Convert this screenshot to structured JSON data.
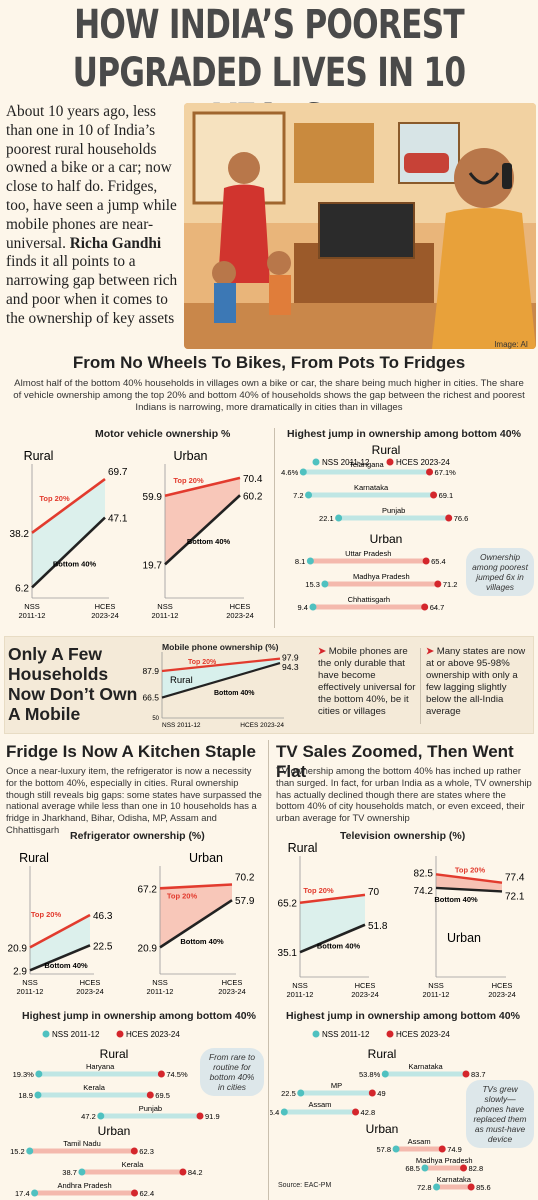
{
  "headline": {
    "line1": "HOW INDIA’S POOREST",
    "line2": "UPGRADED LIVES IN 10 YEARS"
  },
  "intro": {
    "text_before": "About 10 years ago, less than one in 10 of India’s poorest rural households owned a bike or a car; now close to half do. Fridges, too, have seen a jump while mobile phones are near-universal. ",
    "byline": "Richa Gandhi",
    "text_after": " finds it all points to a narrowing gap between rich and poor when it comes to the ownership of key assets"
  },
  "image_credit": "Image: AI",
  "section_vehicle": {
    "title": "From No Wheels To Bikes, From Pots To Fridges",
    "dek": "Almost half of the bottom 40% households in villages own a bike or car, the share being much higher in cities. The share of vehicle ownership among the top 20% and bottom 40% of households shows the gap between the richest and poorest Indians is narrowing, more dramatically in cities than in villages",
    "chart_title": "Motor vehicle ownership %",
    "jump_title": "Highest jump in ownership among bottom 40%",
    "jump_note": "Ownership among poorest jumped 6x in villages"
  },
  "section_mobile": {
    "title_lines": [
      "Only A Few",
      "Households",
      "Now Don’t Own",
      "A Mobile"
    ],
    "chart_title": "Mobile phone ownership (%)",
    "bullet1": "Mobile phones are the only durable that have become effectively universal for the bottom 40%, be it cities or villages",
    "bullet2": "Many states are now at or above 95-98% ownership with only a few lagging slightly below the all-India average"
  },
  "section_fridge": {
    "title": "Fridge Is Now A Kitchen Staple",
    "dek": "Once a near-luxury item, the refrigerator is now a necessity for the bottom 40%, especially in cities. Rural ownership though still reveals big gaps: some states have surpassed the national average while less than one in 10 households has a fridge in Jharkhand, Bihar, Odisha, MP, Assam and Chhattisgarh",
    "chart_title": "Refrigerator ownership (%)",
    "jump_title": "Highest jump in ownership among bottom 40%",
    "jump_note": "From rare to routine for bottom 40% in cities"
  },
  "section_tv": {
    "title": "TV Sales Zoomed, Then Went Flat",
    "dek": "TV ownership among the bottom 40% has inched up rather than surged. In fact, for urban India as a whole, TV ownership has actually declined though there are states where the bottom 40% of city households match, or even exceed, their urban average for TV ownership",
    "chart_title": "Television ownership (%)",
    "jump_title": "Highest jump in ownership among bottom 40%",
    "jump_note": "TVs grew slowly—phones have replaced them as must-have device",
    "source": "Source: EAC-PM"
  },
  "labels": {
    "rural": "Rural",
    "urban": "Urban",
    "top20": "Top 20%",
    "bottom40": "Bottom 40%",
    "nss": "NSS",
    "nss_year": "2011-12",
    "hces": "HCES",
    "hces_year": "2023-24",
    "nss_short": "NSS 2011-12",
    "hces_short": "HCES 2023-24",
    "legend_nss": "NSS 2011-12",
    "legend_hces": "HCES 2023-24"
  },
  "colors": {
    "top20": "#e23b2e",
    "bottom40": "#222222",
    "nss_dot": "#4fc1c0",
    "hces_dot": "#d4262c",
    "rural_fill": "#d8f0ec",
    "urban_fill": "#f7c2b4"
  },
  "chart_data": [
    {
      "id": "vehicle",
      "type": "line",
      "title": "Motor vehicle ownership %",
      "x": [
        "NSS 2011-12",
        "HCES 2023-24"
      ],
      "panels": [
        {
          "name": "Rural",
          "series": [
            {
              "name": "Top 20%",
              "values": [
                38.2,
                69.7
              ]
            },
            {
              "name": "Bottom 40%",
              "values": [
                6.2,
                47.1
              ]
            }
          ]
        },
        {
          "name": "Urban",
          "series": [
            {
              "name": "Top 20%",
              "values": [
                59.9,
                70.4
              ]
            },
            {
              "name": "Bottom 40%",
              "values": [
                19.7,
                60.2
              ]
            }
          ]
        }
      ]
    },
    {
      "id": "vehicle_jump",
      "type": "dumbbell",
      "title": "Highest jump in ownership among bottom 40%",
      "legend": [
        "NSS 2011-12",
        "HCES 2023-24"
      ],
      "groups": [
        {
          "name": "Rural",
          "rows": [
            {
              "state": "Telangana",
              "start": "4.6%",
              "end": "67.1%",
              "s": 4.6,
              "e": 67.1
            },
            {
              "state": "Karnataka",
              "start": "7.2",
              "end": "69.1",
              "s": 7.2,
              "e": 69.1
            },
            {
              "state": "Punjab",
              "start": "22.1",
              "end": "76.6",
              "s": 22.1,
              "e": 76.6
            }
          ]
        },
        {
          "name": "Urban",
          "rows": [
            {
              "state": "Uttar Pradesh",
              "start": "8.1",
              "end": "65.4",
              "s": 8.1,
              "e": 65.4
            },
            {
              "state": "Madhya Pradesh",
              "start": "15.3",
              "end": "71.2",
              "s": 15.3,
              "e": 71.2
            },
            {
              "state": "Chhattisgarh",
              "start": "9.4",
              "end": "64.7",
              "s": 9.4,
              "e": 64.7
            }
          ]
        }
      ]
    },
    {
      "id": "mobile",
      "type": "line",
      "title": "Mobile phone ownership (%)",
      "x": [
        "NSS 2011-12",
        "HCES 2023-24"
      ],
      "ylim_label": "50",
      "series": [
        {
          "name": "Top 20%",
          "values": [
            87.9,
            97.9
          ]
        },
        {
          "name": "Bottom 40%",
          "values": [
            66.5,
            94.3
          ]
        }
      ]
    },
    {
      "id": "fridge",
      "type": "line",
      "title": "Refrigerator ownership (%)",
      "x": [
        "NSS 2011-12",
        "HCES 2023-24"
      ],
      "panels": [
        {
          "name": "Rural",
          "series": [
            {
              "name": "Top 20%",
              "values": [
                20.9,
                46.3
              ]
            },
            {
              "name": "Bottom 40%",
              "values": [
                2.9,
                22.5
              ]
            }
          ]
        },
        {
          "name": "Urban",
          "series": [
            {
              "name": "Top 20%",
              "values": [
                67.2,
                70.2
              ]
            },
            {
              "name": "Bottom 40%",
              "values": [
                20.9,
                57.9
              ]
            }
          ]
        }
      ]
    },
    {
      "id": "fridge_jump",
      "type": "dumbbell",
      "title": "Highest jump in ownership among bottom 40%",
      "legend": [
        "NSS 2011-12",
        "HCES 2023-24"
      ],
      "groups": [
        {
          "name": "Rural",
          "rows": [
            {
              "state": "Haryana",
              "start": "19.3%",
              "end": "74.5%",
              "s": 19.3,
              "e": 74.5
            },
            {
              "state": "Kerala",
              "start": "18.9",
              "end": "69.5",
              "s": 18.9,
              "e": 69.5
            },
            {
              "state": "Punjab",
              "start": "47.2",
              "end": "91.9",
              "s": 47.2,
              "e": 91.9
            }
          ]
        },
        {
          "name": "Urban",
          "rows": [
            {
              "state": "Tamil Nadu",
              "start": "15.2",
              "end": "62.3",
              "s": 15.2,
              "e": 62.3
            },
            {
              "state": "Kerala",
              "start": "38.7",
              "end": "84.2",
              "s": 38.7,
              "e": 84.2
            },
            {
              "state": "Andhra Pradesh",
              "start": "17.4",
              "end": "62.4",
              "s": 17.4,
              "e": 62.4
            }
          ]
        }
      ]
    },
    {
      "id": "tv",
      "type": "line",
      "title": "Television ownership (%)",
      "x": [
        "NSS 2011-12",
        "HCES 2023-24"
      ],
      "panels": [
        {
          "name": "Rural",
          "series": [
            {
              "name": "Top 20%",
              "values": [
                65.2,
                70
              ]
            },
            {
              "name": "Bottom 40%",
              "values": [
                35.1,
                51.8
              ]
            }
          ]
        },
        {
          "name": "Urban",
          "series": [
            {
              "name": "Top 20%",
              "values": [
                82.5,
                77.4
              ]
            },
            {
              "name": "Bottom 40%",
              "values": [
                74.2,
                72.1
              ]
            }
          ]
        }
      ]
    },
    {
      "id": "tv_jump",
      "type": "dumbbell",
      "title": "Highest jump in ownership among bottom 40%",
      "legend": [
        "NSS 2011-12",
        "HCES 2023-24"
      ],
      "groups": [
        {
          "name": "Rural",
          "rows": [
            {
              "state": "Karnataka",
              "start": "53.8%",
              "end": "83.7",
              "s": 53.8,
              "e": 83.7
            },
            {
              "state": "MP",
              "start": "22.5",
              "end": "49",
              "s": 22.5,
              "e": 49
            },
            {
              "state": "Assam",
              "start": "16.4",
              "end": "42.8",
              "s": 16.4,
              "e": 42.8
            }
          ]
        },
        {
          "name": "Urban",
          "rows": [
            {
              "state": "Assam",
              "start": "57.8",
              "end": "74.9",
              "s": 57.8,
              "e": 74.9
            },
            {
              "state": "Madhya Pradesh",
              "start": "68.5",
              "end": "82.8",
              "s": 68.5,
              "e": 82.8
            },
            {
              "state": "Karnataka",
              "start": "72.8",
              "end": "85.6",
              "s": 72.8,
              "e": 85.6
            }
          ]
        }
      ]
    }
  ]
}
